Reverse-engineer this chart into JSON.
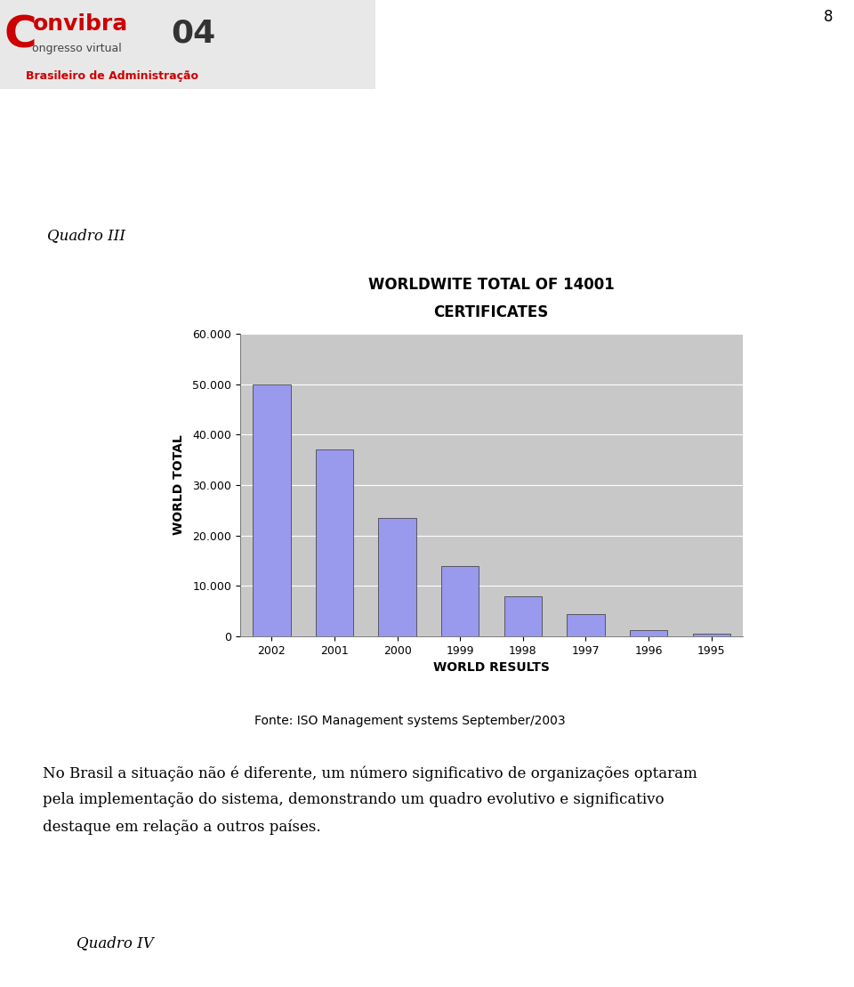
{
  "title_line1": "WORLDWITE TOTAL OF 14001",
  "title_line2": "CERTIFICATES",
  "xlabel": "WORLD RESULTS",
  "ylabel": "WORLD TOTAL",
  "categories": [
    "2002",
    "2001",
    "2000",
    "1999",
    "1998",
    "1997",
    "1996",
    "1995"
  ],
  "values": [
    50000,
    37000,
    23500,
    14000,
    8000,
    4500,
    1200,
    500
  ],
  "bar_color": "#9999ee",
  "bar_edge_color": "#333333",
  "ylim": [
    0,
    60000
  ],
  "yticks": [
    0,
    10000,
    20000,
    30000,
    40000,
    50000,
    60000
  ],
  "ytick_labels": [
    "0",
    "10.000",
    "20.000",
    "30.000",
    "40.000",
    "50.000",
    "60.000"
  ],
  "plot_bg_color": "#c8c8c8",
  "fig_bg_color": "#ffffff",
  "fonte_text": "Fonte: ISO Management systems September/2003",
  "page_number": "8",
  "quadro_label": "Quadro III",
  "paragraph_line1": "No Brasil a situação não é diferente, um número significativo de organizações optaram",
  "paragraph_line2": "pela implementação do sistema, demonstrando um quadro evolutivo e significativo",
  "paragraph_line3": "destaque em relação a outros países.",
  "quadro_iv_label": "Quadro IV",
  "title_fontsize": 12,
  "axis_label_fontsize": 10,
  "tick_fontsize": 9,
  "body_fontsize": 12,
  "fonte_fontsize": 10
}
